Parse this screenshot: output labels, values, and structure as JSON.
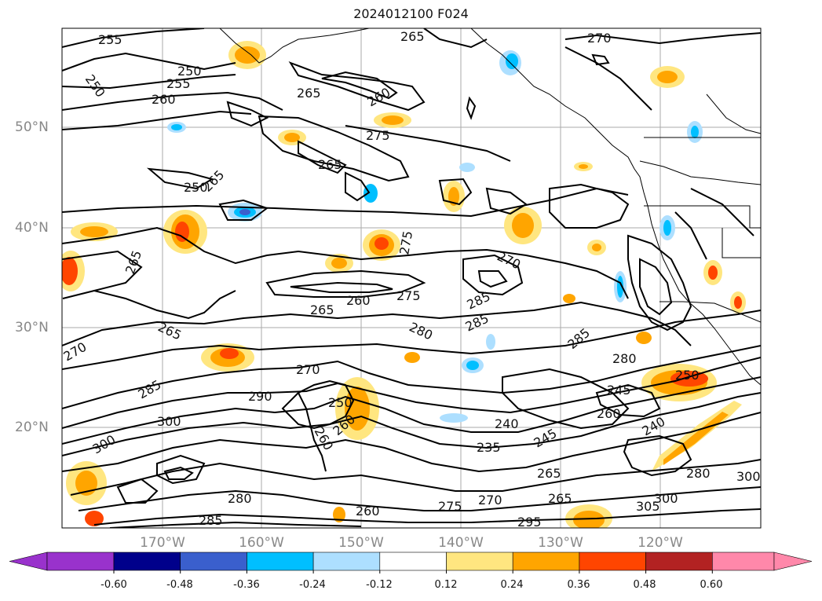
{
  "title": "2024012100 F024",
  "map": {
    "type": "contour map with shaded anomaly field",
    "region": "North Pacific Ocean and western North America",
    "latitude_labels": [
      "50°N",
      "40°N",
      "30°N",
      "20°N"
    ],
    "longitude_labels": [
      "170°W",
      "160°W",
      "150°W",
      "140°W",
      "130°W",
      "120°W"
    ],
    "contour_labels": [
      "255",
      "250",
      "250",
      "255",
      "260",
      "265",
      "265",
      "260",
      "265",
      "265",
      "270",
      "265",
      "270",
      "275",
      "275",
      "270",
      "265",
      "260",
      "275",
      "280",
      "285",
      "285",
      "280",
      "250",
      "245",
      "260",
      "240",
      "235",
      "245",
      "265",
      "265",
      "290",
      "285",
      "285",
      "300",
      "300",
      "300",
      "280",
      "300",
      "305",
      "270",
      "280",
      "285",
      "275",
      "270",
      "295",
      "260",
      "250",
      "240",
      "265",
      "260",
      "260",
      "250"
    ]
  },
  "colorbar": {
    "tick_labels": [
      "-0.60",
      "-0.48",
      "-0.36",
      "-0.24",
      "-0.12",
      "0.12",
      "0.24",
      "0.36",
      "0.48",
      "0.60"
    ],
    "colors": [
      "#9932cc",
      "#00008b",
      "#3a5fcd",
      "#00bfff",
      "#addfff",
      "#ffffff",
      "#ffe680",
      "#ffa500",
      "#ff4500",
      "#b22222",
      "#ff88aa"
    ]
  }
}
